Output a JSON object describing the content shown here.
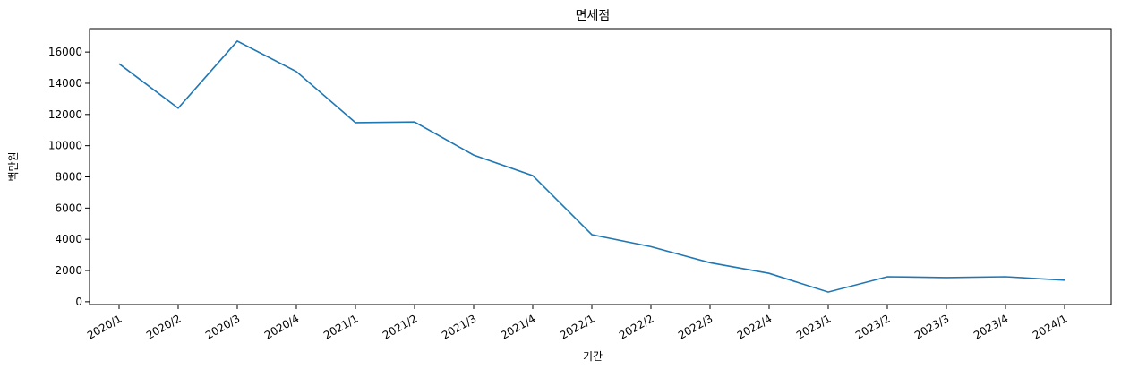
{
  "chart_data": {
    "type": "line",
    "title": "면세점",
    "xlabel": "기간",
    "ylabel": "백만원",
    "categories": [
      "2020/1",
      "2020/2",
      "2020/3",
      "2020/4",
      "2021/1",
      "2021/2",
      "2021/3",
      "2021/4",
      "2022/1",
      "2022/2",
      "2022/3",
      "2022/4",
      "2023/1",
      "2023/2",
      "2023/3",
      "2023/4",
      "2024/1"
    ],
    "series": [
      {
        "values": [
          15250,
          12400,
          16700,
          14750,
          11480,
          11520,
          9400,
          8080,
          4300,
          3530,
          2500,
          1820,
          620,
          1600,
          1550,
          1600,
          1380
        ],
        "color": "#1f77b4"
      }
    ],
    "yticks": [
      0,
      2000,
      4000,
      6000,
      8000,
      10000,
      12000,
      14000,
      16000
    ],
    "ylim": [
      -180,
      17500
    ],
    "grid": false,
    "legend": "none"
  }
}
